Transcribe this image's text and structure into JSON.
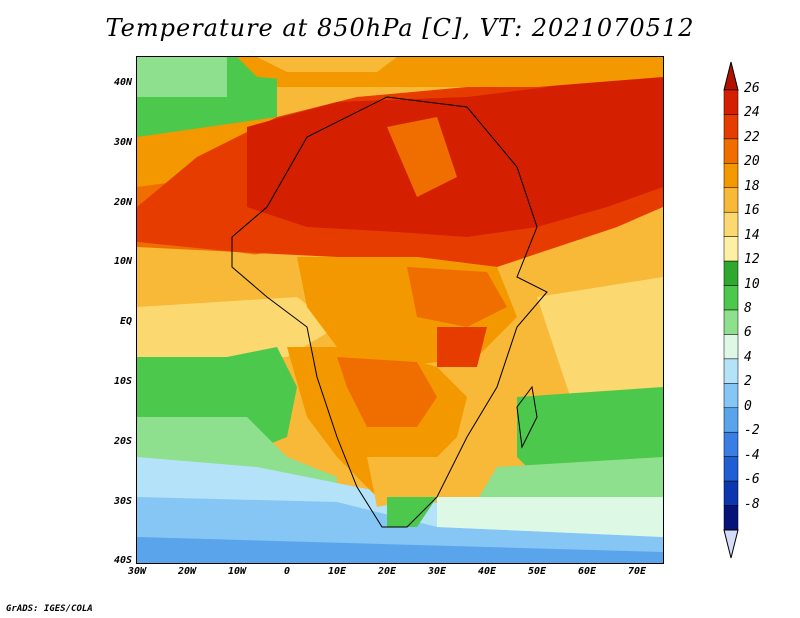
{
  "title": "Temperature at 850hPa [C], VT: 2021070512",
  "map": {
    "lat_ticks": [
      "40N",
      "30N",
      "20N",
      "10N",
      "EQ",
      "10S",
      "20S",
      "30S",
      "40S"
    ],
    "lon_ticks": [
      "30W",
      "20W",
      "10W",
      "0",
      "10E",
      "20E",
      "30E",
      "40E",
      "50E",
      "60E",
      "70E"
    ]
  },
  "colorbar": {
    "levels": [
      "26",
      "24",
      "22",
      "20",
      "18",
      "16",
      "14",
      "12",
      "10",
      "8",
      "6",
      "4",
      "2",
      "0",
      "-2",
      "-4",
      "-6",
      "-8"
    ],
    "colors": [
      "#d42000",
      "#e63c00",
      "#f06e00",
      "#f49800",
      "#f8b838",
      "#fcd870",
      "#fdf0a4",
      "#2ea82e",
      "#4cc84c",
      "#8ee08e",
      "#def8e6",
      "#b4e2f8",
      "#86c6f4",
      "#5aa4ec",
      "#3a7ee4",
      "#205ed4",
      "#0c36b0",
      "#06147a"
    ],
    "top_color": "#b41000",
    "bottom_color": "#d4dcf8"
  },
  "credit": "GrADS: IGES/COLA"
}
